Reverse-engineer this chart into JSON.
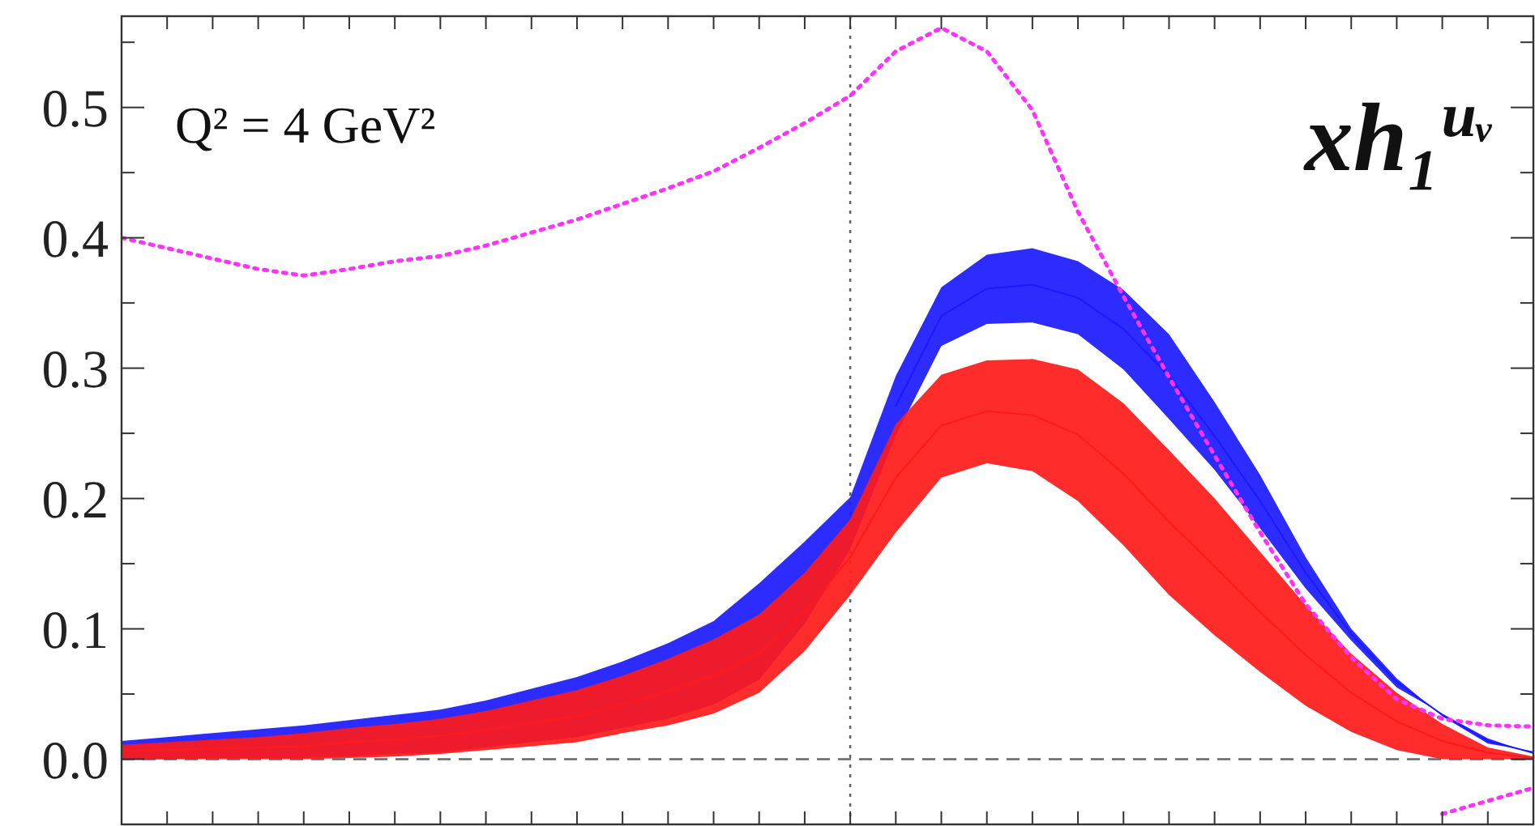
{
  "chart_data": {
    "type": "line",
    "annotations": [
      "Q² = 4 GeV²",
      "xh₁$^{uᵥ}$"
    ],
    "categories": [
      null,
      null,
      null,
      null,
      null,
      null,
      null,
      null,
      null,
      null,
      null,
      null,
      null,
      null,
      null,
      null,
      null,
      null,
      null,
      null,
      null,
      null,
      null,
      null,
      null,
      null,
      null,
      null,
      null,
      null,
      null,
      null
    ],
    "series": [
      {
        "color": "#1a1aff",
        "values": [
          null,
          null,
          null,
          null,
          null,
          null,
          null,
          null,
          null,
          null,
          null,
          null,
          null,
          null,
          null,
          null,
          null,
          0.271,
          0.34,
          0.361,
          0.364,
          0.354,
          0.33,
          0.294,
          0.248,
          0.198,
          0.143,
          0.096,
          0.059,
          0.034,
          0.014,
          0.005
        ],
        "lower": [
          0,
          0,
          0.001,
          0.001,
          0.001,
          0.002,
          0.004,
          0.005,
          0.009,
          0.013,
          0.017,
          0.024,
          0.031,
          0.042,
          0.061,
          0.104,
          0.161,
          0.248,
          0.317,
          0.334,
          0.335,
          0.326,
          0.299,
          0.261,
          0.222,
          0.177,
          0.131,
          0.091,
          0.055,
          0.035,
          0.016,
          0.004
        ],
        "upper": [
          0.014,
          0.017,
          0.02,
          0.023,
          0.026,
          0.03,
          0.034,
          0.038,
          0.045,
          0.054,
          0.063,
          0.075,
          0.089,
          0.106,
          0.135,
          0.167,
          0.201,
          0.294,
          0.362,
          0.387,
          0.392,
          0.382,
          0.36,
          0.326,
          0.274,
          0.218,
          0.155,
          0.1,
          0.062,
          0.033,
          0.012,
          0.006
        ]
      },
      {
        "color": "#ff1a1a",
        "values": [
          0.006,
          0.007,
          0.008,
          0.009,
          0.01,
          0.013,
          0.015,
          0.018,
          0.022,
          0.028,
          0.033,
          0.042,
          0.052,
          0.064,
          0.081,
          0.113,
          0.155,
          0.216,
          0.256,
          0.267,
          0.264,
          0.249,
          0.219,
          0.182,
          0.148,
          0.113,
          0.08,
          0.051,
          0.029,
          0.014,
          0.005,
          0.001
        ],
        "lower": [
          0,
          0,
          0,
          0,
          0,
          0.001,
          0.002,
          0.004,
          0.007,
          0.01,
          0.013,
          0.02,
          0.026,
          0.035,
          0.051,
          0.083,
          0.126,
          0.174,
          0.216,
          0.227,
          0.221,
          0.198,
          0.164,
          0.126,
          0.095,
          0.067,
          0.041,
          0.021,
          0.007,
          0,
          0,
          0
        ],
        "upper": [
          0.011,
          0.013,
          0.015,
          0.017,
          0.02,
          0.024,
          0.027,
          0.031,
          0.037,
          0.045,
          0.053,
          0.064,
          0.077,
          0.092,
          0.111,
          0.143,
          0.184,
          0.257,
          0.295,
          0.306,
          0.307,
          0.299,
          0.273,
          0.237,
          0.2,
          0.159,
          0.118,
          0.081,
          0.051,
          0.027,
          0.009,
          0.002
        ]
      },
      {
        "color": "#ff33ff",
        "line_style": "dotted",
        "values": [
          0.4,
          0.392,
          0.384,
          0.376,
          0.371,
          0.376,
          0.382,
          0.386,
          0.394,
          0.404,
          0.414,
          0.426,
          0.438,
          0.451,
          0.469,
          0.488,
          0.509,
          0.543,
          0.561,
          0.543,
          0.498,
          0.42,
          0.355,
          0.293,
          0.233,
          0.174,
          0.119,
          0.078,
          0.046,
          0.031,
          0.026,
          0.025
        ]
      },
      {
        "color": "#ff33ff",
        "line_style": "dotted",
        "values": [
          null,
          null,
          null,
          null,
          null,
          null,
          null,
          null,
          null,
          null,
          null,
          null,
          null,
          null,
          null,
          null,
          null,
          null,
          null,
          null,
          null,
          null,
          null,
          null,
          null,
          null,
          null,
          null,
          null,
          -0.042,
          -0.032,
          -0.022
        ]
      }
    ],
    "ylim": [
      -0.05,
      0.57
    ],
    "yticks": [
      {
        "value": 0,
        "label": "0.0"
      },
      {
        "value": 0.05,
        "label": null
      },
      {
        "value": 0.1,
        "label": "0.1"
      },
      {
        "value": 0.15,
        "label": null
      },
      {
        "value": 0.2,
        "label": "0.2"
      },
      {
        "value": 0.25,
        "label": null
      },
      {
        "value": 0.3,
        "label": "0.3"
      },
      {
        "value": 0.35,
        "label": null
      },
      {
        "value": 0.4,
        "label": "0.4"
      },
      {
        "value": 0.45,
        "label": null
      },
      {
        "value": 0.5,
        "label": "0.5"
      },
      {
        "value": 0.55,
        "label": null
      }
    ],
    "tick_labels": "y",
    "ref_lines": [
      {
        "axis": "y",
        "value": 0,
        "color": "#666666",
        "line_style": "dashed"
      }
    ]
  }
}
